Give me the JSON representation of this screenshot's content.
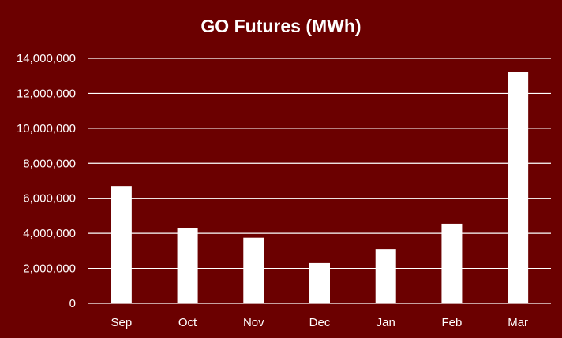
{
  "chart_data": {
    "type": "bar",
    "title": "GO Futures (MWh)",
    "xlabel": "",
    "ylabel": "",
    "categories": [
      "Sep",
      "Oct",
      "Nov",
      "Dec",
      "Jan",
      "Feb",
      "Mar"
    ],
    "values": [
      6700000,
      4300000,
      3750000,
      2300000,
      3100000,
      4550000,
      13200000
    ],
    "ylim": [
      0,
      14000000
    ],
    "yticks": [
      0,
      2000000,
      4000000,
      6000000,
      8000000,
      10000000,
      12000000,
      14000000
    ],
    "ytick_labels": [
      "0",
      "2,000,000",
      "4,000,000",
      "6,000,000",
      "8,000,000",
      "10,000,000",
      "12,000,000",
      "14,000,000"
    ],
    "grid": true,
    "legend": "none",
    "colors": {
      "background": "#6b0000",
      "bars": "#ffffff",
      "gridlines": "#ffffff",
      "text": "#ffffff"
    }
  }
}
